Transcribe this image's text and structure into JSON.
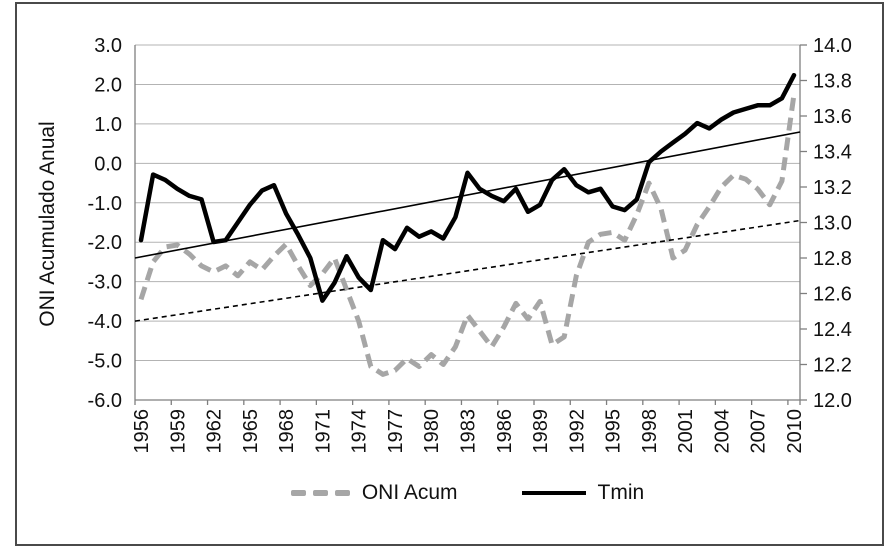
{
  "figure": {
    "y_axis_title": "ONI Acumulado Anual"
  },
  "legend": [
    {
      "label": "ONI Acum",
      "style": "dashed",
      "color": "#a6a6a6"
    },
    {
      "label": "Tmin",
      "style": "solid",
      "color": "#000000"
    }
  ],
  "colors": {
    "oni_series": "#a6a6a6",
    "tmin_series": "#000000",
    "gridline": "#b3b3b3",
    "axis": "#7f7f7f",
    "text": "#111111",
    "frame": "#4a4a4a"
  },
  "chart_data": {
    "type": "line",
    "title": "",
    "xlabel": "",
    "ylabel_left": "ONI Acumulado Anual",
    "ylabel_right": "",
    "grid": true,
    "legend_position": "bottom",
    "x": [
      1956,
      1957,
      1958,
      1959,
      1960,
      1961,
      1962,
      1963,
      1964,
      1965,
      1966,
      1967,
      1968,
      1969,
      1970,
      1971,
      1972,
      1973,
      1974,
      1975,
      1976,
      1977,
      1978,
      1979,
      1980,
      1981,
      1982,
      1983,
      1984,
      1985,
      1986,
      1987,
      1988,
      1989,
      1990,
      1991,
      1992,
      1993,
      1994,
      1995,
      1996,
      1997,
      1998,
      1999,
      2000,
      2001,
      2002,
      2003,
      2004,
      2005,
      2006,
      2007,
      2008,
      2009,
      2010
    ],
    "x_tick_labels": [
      "1956",
      "1959",
      "1962",
      "1965",
      "1968",
      "1971",
      "1974",
      "1977",
      "1980",
      "1983",
      "1986",
      "1989",
      "1992",
      "1995",
      "1998",
      "2001",
      "2004",
      "2007",
      "2010"
    ],
    "left_axis": {
      "min": -6.0,
      "max": 3.0,
      "step": 1.0,
      "tick_labels": [
        "3.0",
        "2.0",
        "1.0",
        "0.0",
        "-1.0",
        "-2.0",
        "-3.0",
        "-4.0",
        "-5.0",
        "-6.0"
      ]
    },
    "right_axis": {
      "min": 12.0,
      "max": 14.0,
      "step": 0.2,
      "tick_labels": [
        "14.0",
        "13.8",
        "13.6",
        "13.4",
        "13.2",
        "13.0",
        "12.8",
        "12.6",
        "12.4",
        "12.2",
        "12.0"
      ]
    },
    "series": [
      {
        "name": "ONI Acum",
        "axis": "left",
        "style": "dashed-thick",
        "color": "#a6a6a6",
        "values": [
          -3.45,
          -2.5,
          -2.12,
          -2.07,
          -2.3,
          -2.6,
          -2.75,
          -2.6,
          -2.85,
          -2.5,
          -2.7,
          -2.35,
          -2.05,
          -2.6,
          -3.1,
          -2.8,
          -2.4,
          -3.2,
          -4.0,
          -5.15,
          -5.35,
          -5.25,
          -4.95,
          -5.15,
          -4.85,
          -5.1,
          -4.65,
          -3.85,
          -4.25,
          -4.65,
          -4.15,
          -3.55,
          -3.95,
          -3.5,
          -4.6,
          -4.4,
          -2.85,
          -2.0,
          -1.8,
          -1.75,
          -1.95,
          -1.3,
          -0.5,
          -1.15,
          -2.4,
          -2.2,
          -1.55,
          -1.1,
          -0.6,
          -0.3,
          -0.4,
          -0.65,
          -1.05,
          -0.45,
          1.75
        ]
      },
      {
        "name": "Tmin",
        "axis": "right",
        "style": "solid-thick",
        "color": "#000000",
        "values": [
          12.9,
          13.27,
          13.24,
          13.19,
          13.15,
          13.13,
          12.89,
          12.9,
          13.0,
          13.1,
          13.18,
          13.21,
          13.05,
          12.93,
          12.8,
          12.56,
          12.66,
          12.81,
          12.69,
          12.62,
          12.9,
          12.85,
          12.97,
          12.92,
          12.95,
          12.91,
          13.03,
          13.28,
          13.19,
          13.15,
          13.12,
          13.19,
          13.06,
          13.1,
          13.24,
          13.3,
          13.21,
          13.17,
          13.19,
          13.09,
          13.07,
          13.13,
          13.34,
          13.4,
          13.45,
          13.5,
          13.56,
          13.53,
          13.58,
          13.62,
          13.64,
          13.66,
          13.66,
          13.7,
          13.83
        ]
      }
    ],
    "trend_lines": [
      {
        "name": "Tmin trend",
        "axis": "right",
        "style": "solid-thin",
        "color": "#000000",
        "start": 12.8,
        "end": 13.51
      },
      {
        "name": "ONI Acum trend",
        "axis": "left",
        "style": "dashed-thin",
        "color": "#000000",
        "start": -4.0,
        "end": -1.45
      }
    ]
  }
}
